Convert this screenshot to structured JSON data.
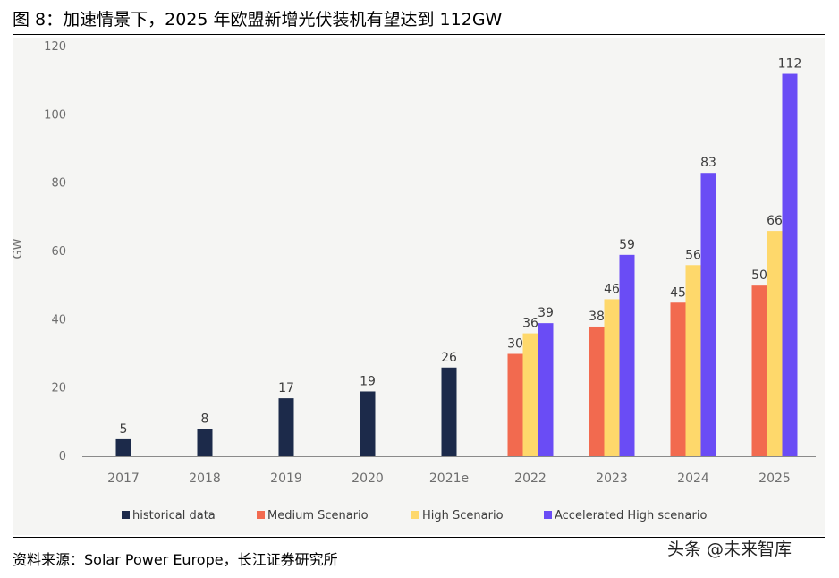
{
  "header": {
    "figure_title": "图 8：加速情景下，2025 年欧盟新增光伏装机有望达到 112GW"
  },
  "footer": {
    "source": "资料来源：Solar Power Europe，长江证券研究所",
    "watermark": "头条 @未来智库"
  },
  "colors": {
    "historical": "#1c2a4a",
    "medium": "#f26a4f",
    "high": "#fed86b",
    "accelerated": "#6a4cf5",
    "axis_text": "#6e6e6e",
    "label_text": "#3c3c3c"
  },
  "chart_data": {
    "type": "bar",
    "title": "",
    "xlabel": "",
    "ylabel": "GW",
    "ylim": [
      0,
      120
    ],
    "yticks": [
      0,
      20,
      40,
      60,
      80,
      100,
      120
    ],
    "grid": false,
    "legend_position": "bottom",
    "categories": [
      "2017",
      "2018",
      "2019",
      "2020",
      "2021e",
      "2022",
      "2023",
      "2024",
      "2025"
    ],
    "series": [
      {
        "name": "historical data",
        "color_key": "historical",
        "values": [
          5,
          8,
          17,
          19,
          26,
          null,
          null,
          null,
          null
        ]
      },
      {
        "name": "Medium Scenario",
        "color_key": "medium",
        "values": [
          null,
          null,
          null,
          null,
          null,
          30,
          38,
          45,
          50
        ]
      },
      {
        "name": "High Scenario",
        "color_key": "high",
        "values": [
          null,
          null,
          null,
          null,
          null,
          36,
          46,
          56,
          66
        ]
      },
      {
        "name": "Accelerated High scenario",
        "color_key": "accelerated",
        "values": [
          null,
          null,
          null,
          null,
          null,
          39,
          59,
          83,
          112
        ]
      }
    ]
  }
}
